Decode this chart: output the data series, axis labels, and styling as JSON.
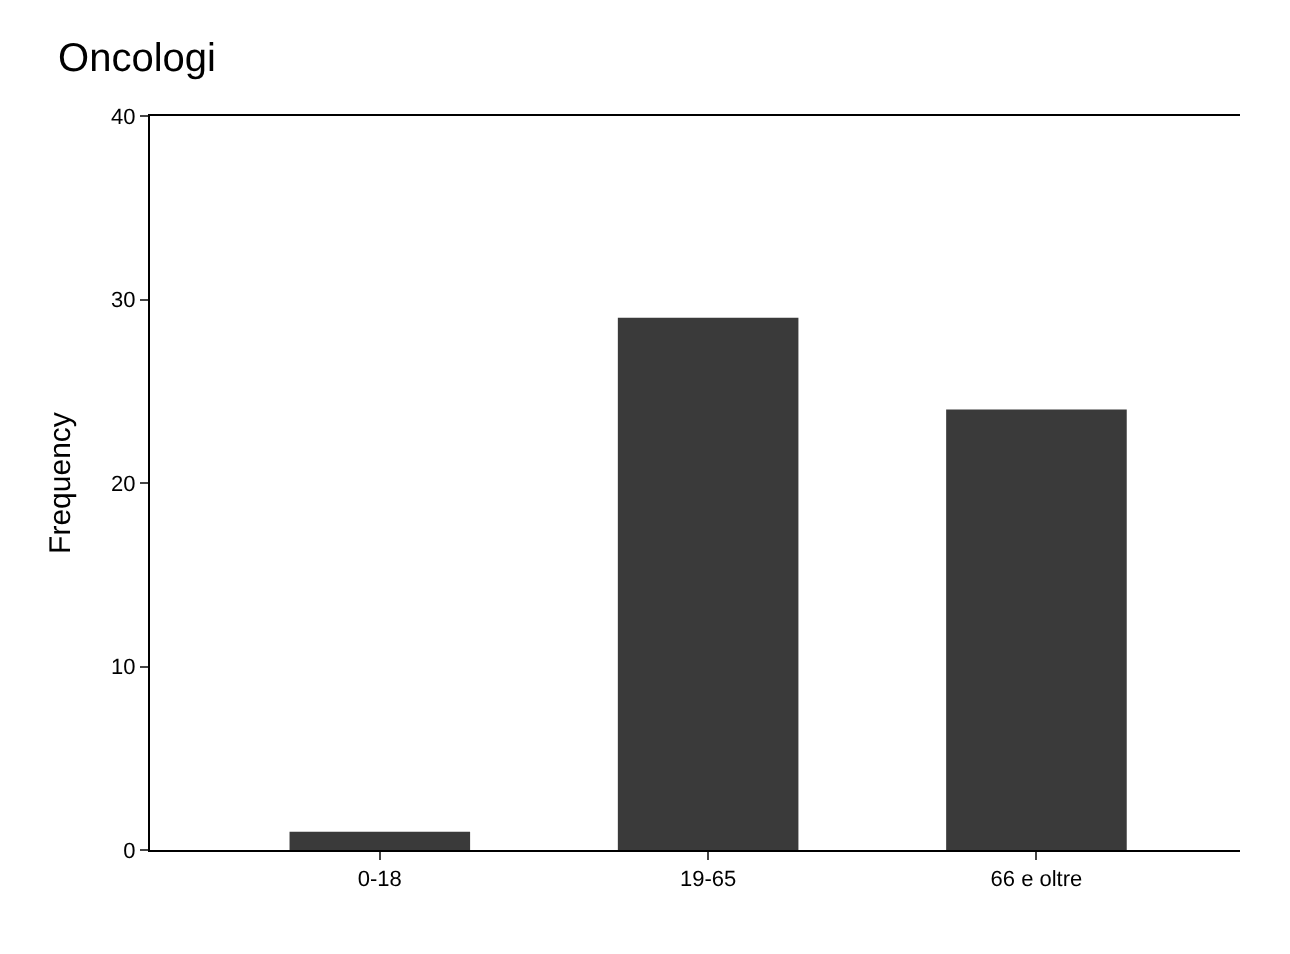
{
  "chart_data": {
    "type": "bar",
    "title": "Oncologi",
    "ylabel": "Frequency",
    "categories": [
      "0-18",
      "19-65",
      "66 e oltre"
    ],
    "values": [
      1,
      29,
      24
    ],
    "color": "#3a3a3a",
    "ylim": [
      0,
      40
    ],
    "yticks": [
      0,
      10,
      20,
      30,
      40
    ],
    "grid": false
  }
}
